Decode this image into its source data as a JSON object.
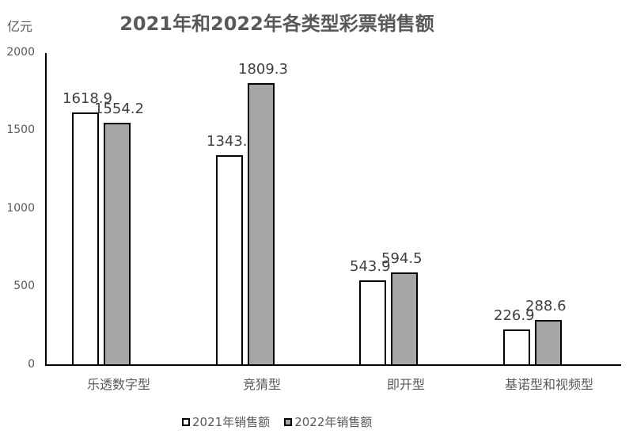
{
  "chart_data": {
    "type": "bar",
    "title": "2021年和2022年各类型彩票销售额",
    "ylabel": "亿元",
    "xlabel": "",
    "ylim": [
      0,
      2000
    ],
    "yticks": [
      "0",
      "500",
      "1000",
      "1500",
      "2000"
    ],
    "categories": [
      "乐透数字型",
      "竞猜型",
      "即开型",
      "基诺型和视频型"
    ],
    "series": [
      {
        "name": "2021年销售额",
        "color": "#ffffff",
        "values": [
          1618.9,
          1343.2,
          543.9,
          226.9
        ],
        "labels": [
          "1618.9",
          "1343.2",
          "543.9",
          "226.9"
        ]
      },
      {
        "name": "2022年销售额",
        "color": "#a6a6a6",
        "values": [
          1554.2,
          1809.3,
          594.5,
          288.6
        ],
        "labels": [
          "1554.2",
          "1809.3",
          "594.5",
          "288.6"
        ]
      }
    ],
    "grid": false,
    "legend_position": "bottom"
  }
}
